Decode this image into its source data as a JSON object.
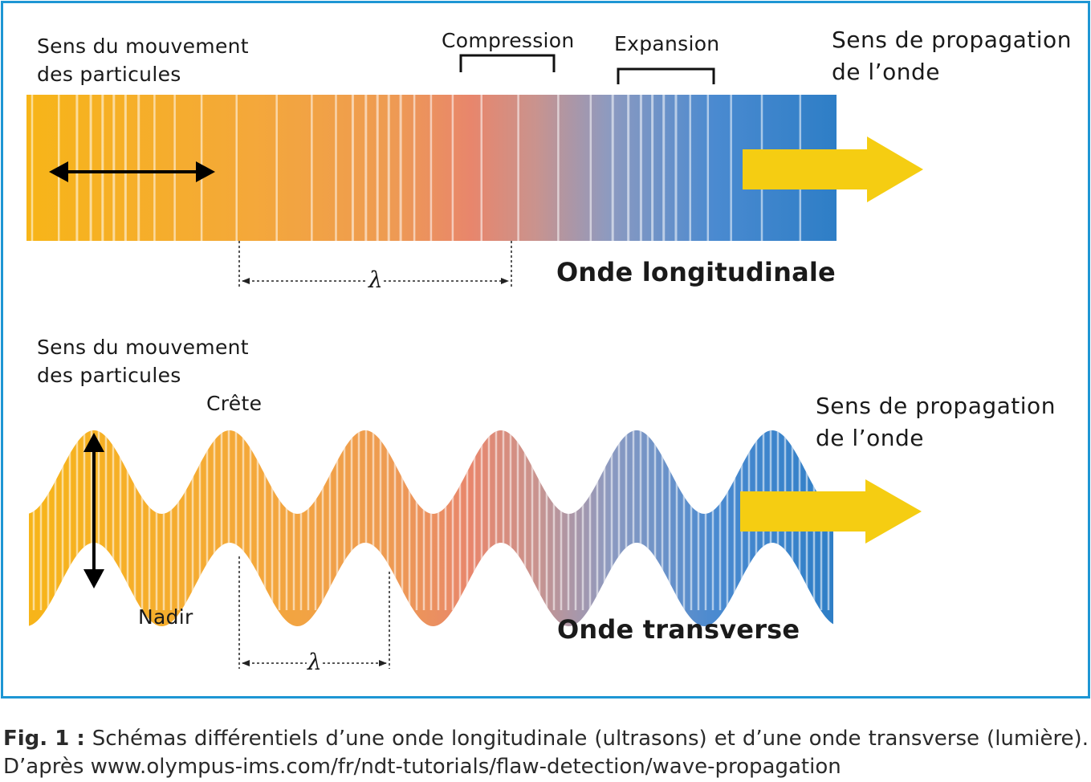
{
  "longitudinal": {
    "particle_motion_line1": "Sens du mouvement",
    "particle_motion_line2": "des particules",
    "compression": "Compression",
    "expansion": "Expansion",
    "propagation_line1": "Sens de propagation",
    "propagation_line2": "de l’onde",
    "wavelength": "λ",
    "title": "Onde longitudinale"
  },
  "transverse": {
    "particle_motion_line1": "Sens du mouvement",
    "particle_motion_line2": "des particules",
    "crest": "Crête",
    "trough": "Nadir",
    "propagation_line1": "Sens de propagation",
    "propagation_line2": "de l’onde",
    "wavelength": "λ",
    "title": "Onde transverse"
  },
  "caption": {
    "label": "Fig. 1 :",
    "words": [
      "Schémas",
      "différentiels",
      "d’une",
      "onde",
      "longitudinale",
      "(ultrasons)",
      "et",
      "d’une",
      "onde",
      "transverse",
      "(lumière)."
    ],
    "source": "D’après www.olympus-ims.com/fr/ndt-tutorials/flaw-detection/wave-propagation"
  },
  "colors": {
    "frame": "#1e96d4",
    "gradient_start": "#f7b518",
    "gradient_mid1": "#f4a142",
    "gradient_mid2": "#e8826a",
    "gradient_mid3": "#a99ab0",
    "gradient_end": "#2f7fc8",
    "propagation_arrow": "#f5cd12",
    "motion_arrow": "#000000"
  },
  "icons": {
    "motion_arrow": "double-headed-arrow-icon",
    "propagation_arrow": "right-arrow-icon"
  }
}
